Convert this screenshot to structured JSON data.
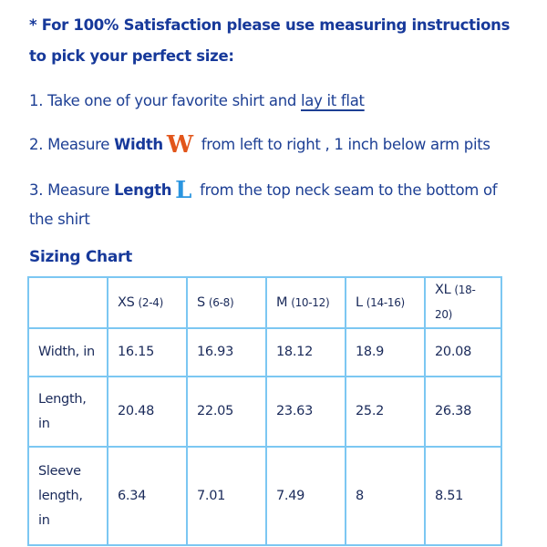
{
  "intro": {
    "line1": "* For 100% Satisfaction please use measuring instructions",
    "line2": "to pick your perfect size:"
  },
  "steps": [
    {
      "prefix": "1. Take one of your favorite shirt and ",
      "link": "lay it flat"
    },
    {
      "prefix": "2. Measure ",
      "bold": "Width",
      "letter": "W",
      "rest": " from left to right , 1 inch below arm pits"
    },
    {
      "prefix": "3. Measure ",
      "bold": "Length",
      "letter": "L",
      "rest": " from the top neck seam to the bottom of",
      "cont": "the shirt"
    }
  ],
  "chart": {
    "title": "Sizing Chart",
    "sizes": [
      {
        "size": "XS",
        "range": "(2-4)"
      },
      {
        "size": "S",
        "range": "(6-8)"
      },
      {
        "size": "M",
        "range": "(10-12)"
      },
      {
        "size": "L",
        "range": "(14-16)"
      },
      {
        "size": "XL",
        "range": "(18-20)"
      }
    ],
    "rows": [
      {
        "label": "Width, in",
        "values": [
          "16.15",
          "16.93",
          "18.12",
          "18.9",
          "20.08"
        ]
      },
      {
        "label": "Length, in",
        "values": [
          "20.48",
          "22.05",
          "23.63",
          "25.2",
          "26.38"
        ]
      },
      {
        "label": "Sleeve length, in",
        "values": [
          "6.34",
          "7.01",
          "7.49",
          "8",
          "8.51"
        ]
      }
    ]
  },
  "colors": {
    "text": "#1d3f94",
    "border": "#7cc7f2",
    "width_letter": "#e2561b",
    "length_letter": "#2a95e0"
  }
}
